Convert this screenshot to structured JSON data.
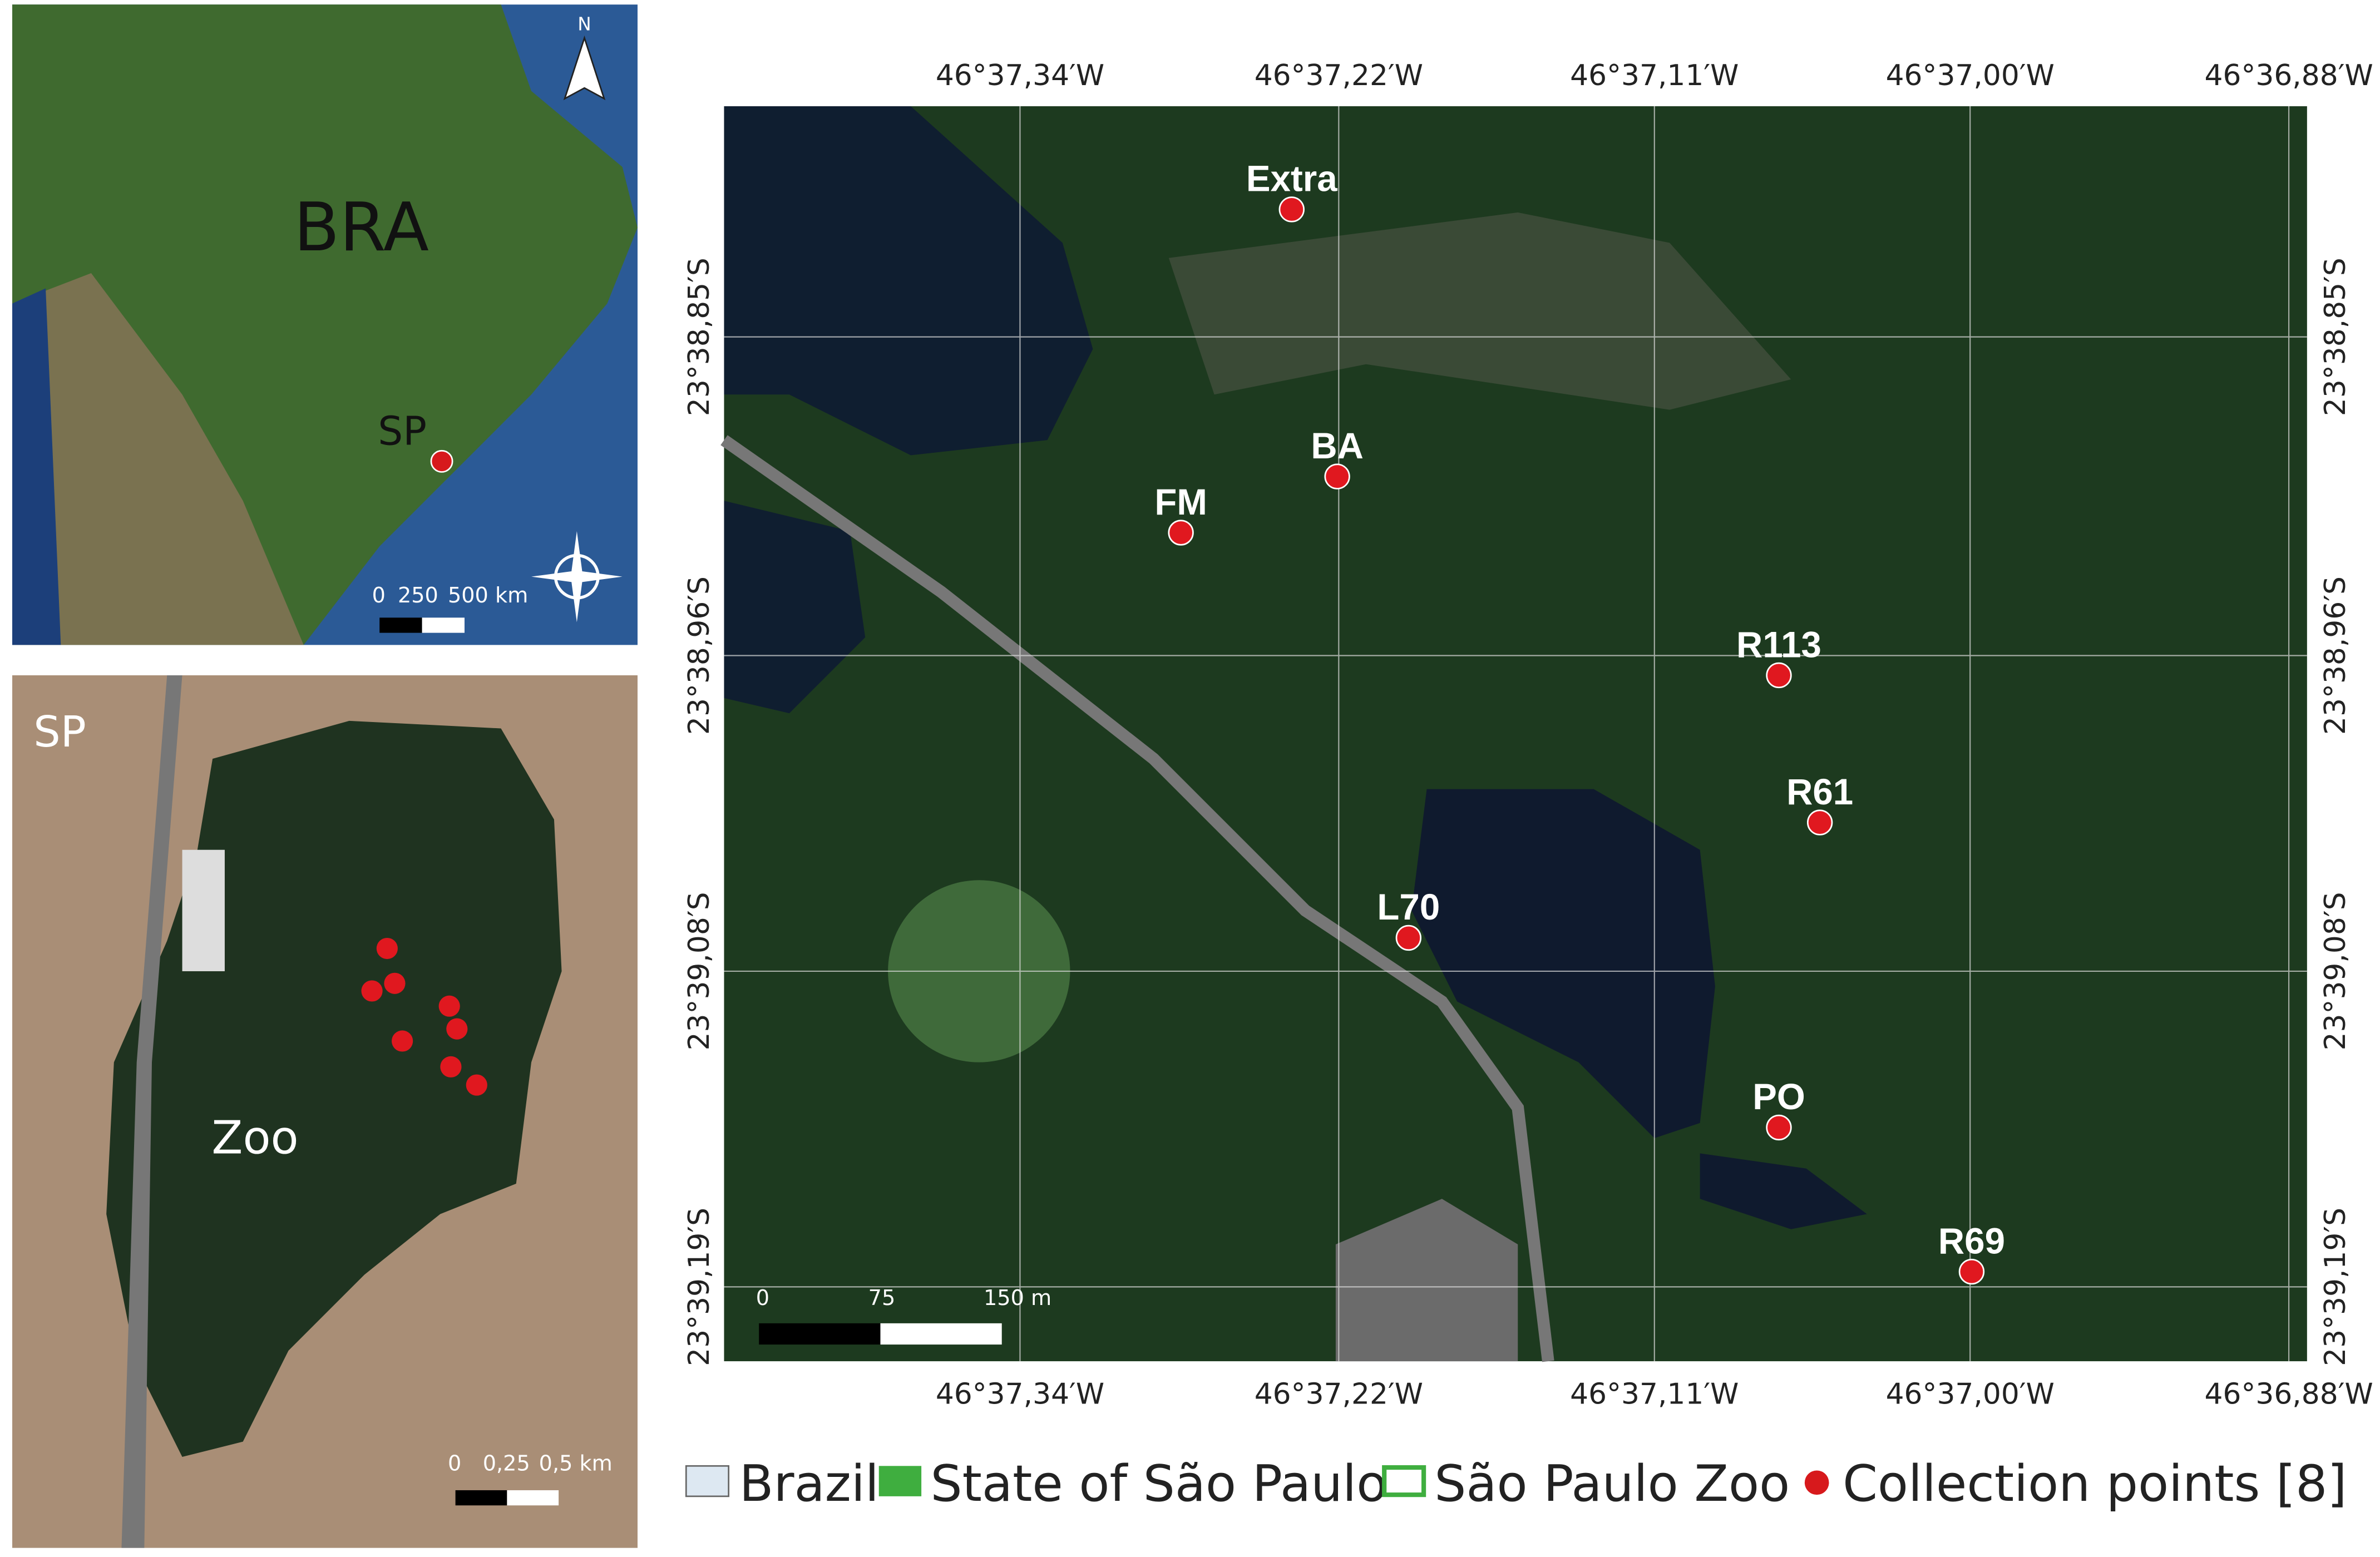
{
  "inset_brazil": {
    "country_label": "BRA",
    "state_label": "SP",
    "north_label": "N",
    "scale_labels": [
      "0",
      "250",
      "500 km"
    ]
  },
  "inset_city": {
    "city_label": "SP",
    "zoo_label": "Zoo",
    "scale_labels": [
      "0",
      "0,25",
      "0,5 km"
    ]
  },
  "main_map": {
    "longitude_labels": [
      "46°37,34′W",
      "46°37,22′W",
      "46°37,11′W",
      "46°37,00′W",
      "46°36,88′W"
    ],
    "latitude_labels": [
      "23°38,85′S",
      "23°38,96′S",
      "23°39,08′S",
      "23°39,19′S"
    ],
    "points": [
      {
        "label": "Extra"
      },
      {
        "label": "BA"
      },
      {
        "label": "FM"
      },
      {
        "label": "R113"
      },
      {
        "label": "R61"
      },
      {
        "label": "L70"
      },
      {
        "label": "PO"
      },
      {
        "label": "R69"
      }
    ],
    "scale_labels": [
      "0",
      "75",
      "150 m"
    ]
  },
  "legend": [
    {
      "label": "Brazil"
    },
    {
      "label": "State of São Paulo"
    },
    {
      "label": "São Paulo Zoo"
    },
    {
      "label": "Collection points [8]"
    }
  ]
}
